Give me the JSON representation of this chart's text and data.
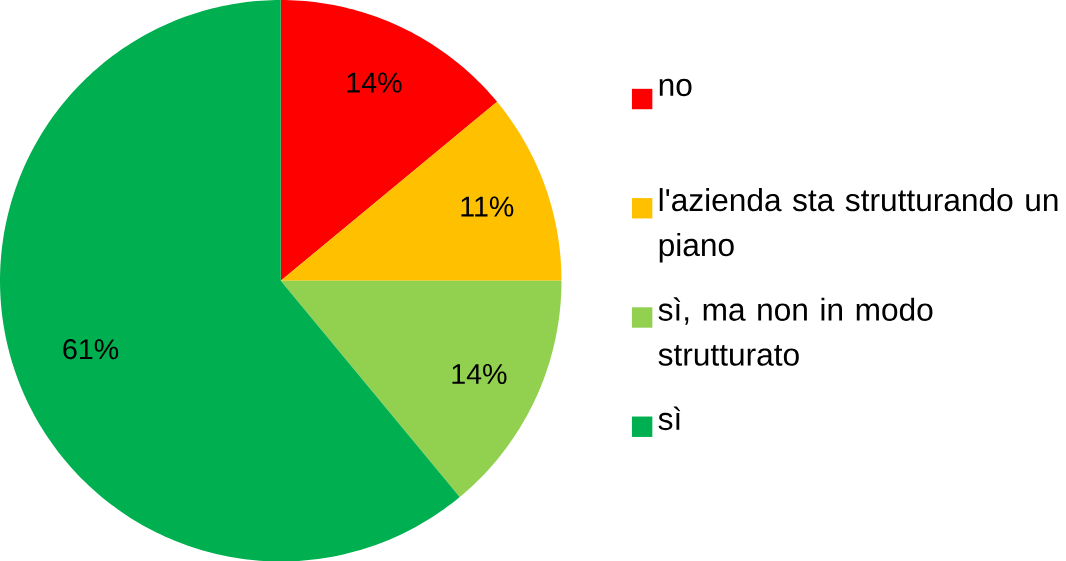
{
  "chart_data": {
    "type": "pie",
    "categories": [
      "no",
      "l'azienda sta strutturando un piano",
      "sì, ma non in modo strutturato",
      "sì"
    ],
    "values": [
      14,
      11,
      14,
      61
    ],
    "colors": [
      "#ff0000",
      "#ffc000",
      "#92d050",
      "#00b050"
    ],
    "value_labels": [
      "14%",
      "11%",
      "14%",
      "61%"
    ],
    "legend": "right"
  }
}
